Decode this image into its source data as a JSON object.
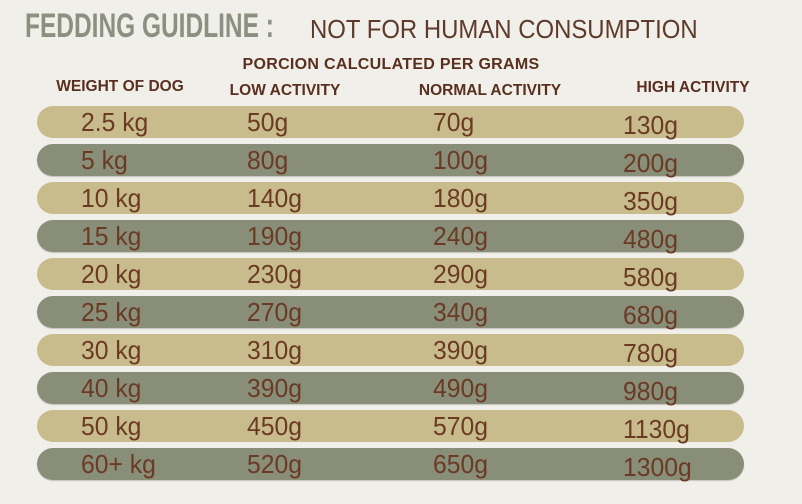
{
  "header": {
    "title": "FEDDING GUIDLINE :",
    "warning": "NOT FOR HUMAN CONSUMPTION",
    "subtitle": "PORCION CALCULATED PER GRAMS"
  },
  "colors": {
    "background": "#f0efea",
    "title_green": "#8b9180",
    "header_brown": "#5a2f1e",
    "warning_brown": "#5d3a2a",
    "cell_text_brown": "#6b3a24",
    "row_tan": "#c8bc8c",
    "row_olive": "#898e78"
  },
  "chart_data": {
    "type": "table",
    "title": "FEDDING GUIDLINE : NOT FOR HUMAN CONSUMPTION",
    "subtitle": "PORCION CALCULATED PER GRAMS",
    "columns": [
      "WEIGHT OF DOG",
      "LOW ACTIVITY",
      "NORMAL ACTIVITY",
      "HIGH ACTIVITY"
    ],
    "rows": [
      {
        "weight": "2.5 kg",
        "low": "50g",
        "normal": "70g",
        "high": "130g"
      },
      {
        "weight": "5 kg",
        "low": "80g",
        "normal": "100g",
        "high": "200g"
      },
      {
        "weight": "10 kg",
        "low": "140g",
        "normal": "180g",
        "high": "350g"
      },
      {
        "weight": "15 kg",
        "low": "190g",
        "normal": "240g",
        "high": "480g"
      },
      {
        "weight": "20 kg",
        "low": "230g",
        "normal": "290g",
        "high": "580g"
      },
      {
        "weight": "25 kg",
        "low": "270g",
        "normal": "340g",
        "high": "680g"
      },
      {
        "weight": "30 kg",
        "low": "310g",
        "normal": "390g",
        "high": "780g"
      },
      {
        "weight": "40 kg",
        "low": "390g",
        "normal": "490g",
        "high": "980g"
      },
      {
        "weight": "50 kg",
        "low": "450g",
        "normal": "570g",
        "high": "1130g"
      },
      {
        "weight": "60+ kg",
        "low": "520g",
        "normal": "650g",
        "high": "1300g"
      }
    ]
  }
}
